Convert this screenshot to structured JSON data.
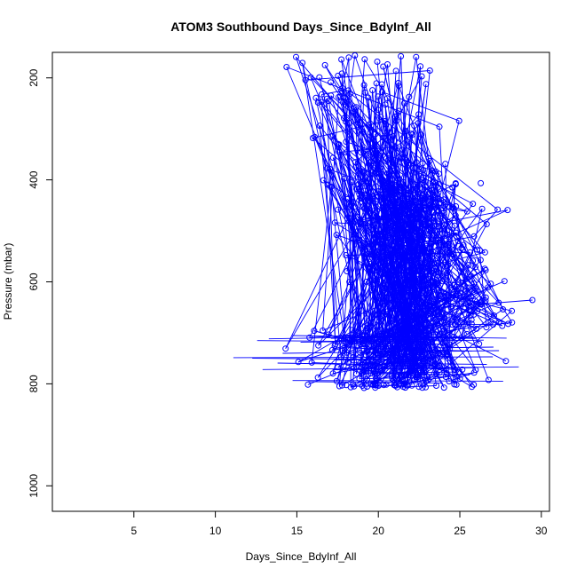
{
  "chart_data": {
    "type": "scatter",
    "title": "ATOM3 Southbound Days_Since_BdyInf_All",
    "xlabel": "Days_Since_BdyInf_All",
    "ylabel": "Pressure (mbar)",
    "xlim": [
      0,
      30.5
    ],
    "ylim": [
      1050,
      150
    ],
    "y_reversed": true,
    "xticks": [
      5,
      10,
      15,
      20,
      25,
      30
    ],
    "yticks": [
      200,
      400,
      600,
      800,
      1000
    ],
    "grid": false,
    "legend": "none",
    "series_color": "#0000FF",
    "marker": "open-circle",
    "connected_by_lines": true
  }
}
